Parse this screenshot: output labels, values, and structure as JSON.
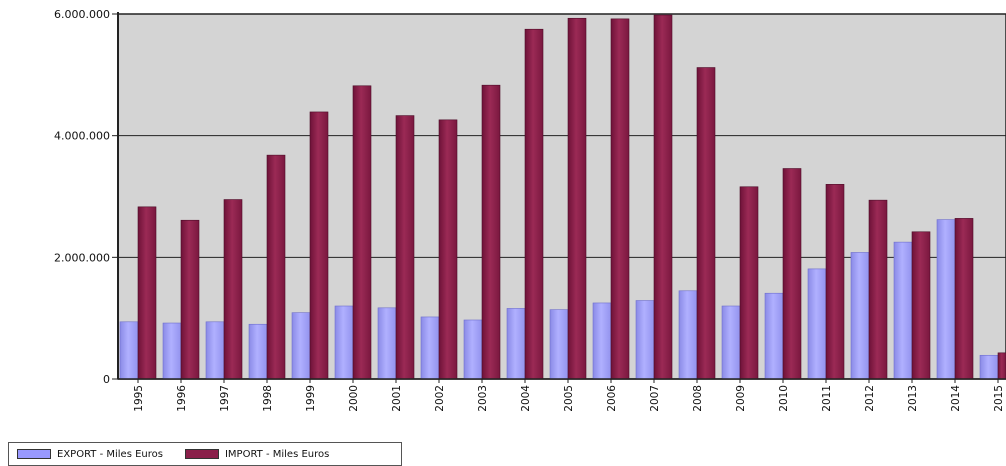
{
  "chart_data": {
    "type": "bar",
    "title": "",
    "xlabel": "",
    "ylabel": "",
    "ylim": [
      0,
      6000000
    ],
    "yticks": [
      0,
      2000000,
      4000000,
      6000000
    ],
    "ytick_labels": [
      "0",
      "2.000.000",
      "4.000.000",
      "6.000.000"
    ],
    "grid": "horizontal",
    "legend_placement": "bottom-left",
    "categories": [
      "1995",
      "1996",
      "1997",
      "1998",
      "1999",
      "2000",
      "2001",
      "2002",
      "2003",
      "2004",
      "2005",
      "2006",
      "2007",
      "2008",
      "2009",
      "2010",
      "2011",
      "2012",
      "2013",
      "2014",
      "2015"
    ],
    "series": [
      {
        "name": "EXPORT - Miles Euros",
        "color": "#9999ff",
        "values": [
          940000,
          920000,
          940000,
          900000,
          1090000,
          1200000,
          1170000,
          1020000,
          970000,
          1160000,
          1140000,
          1250000,
          1290000,
          1450000,
          1200000,
          1410000,
          1810000,
          2080000,
          2250000,
          2620000,
          390000
        ]
      },
      {
        "name": "IMPORT - Miles Euros",
        "color": "#993366",
        "values": [
          2830000,
          2610000,
          2950000,
          3680000,
          4390000,
          4820000,
          4330000,
          4260000,
          4830000,
          5750000,
          5930000,
          5920000,
          6070000,
          5120000,
          3160000,
          3460000,
          3200000,
          2940000,
          2420000,
          2640000,
          430000
        ]
      }
    ]
  }
}
